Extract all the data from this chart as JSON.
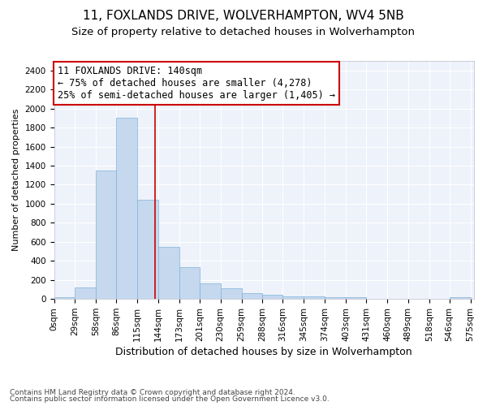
{
  "title1": "11, FOXLANDS DRIVE, WOLVERHAMPTON, WV4 5NB",
  "title2": "Size of property relative to detached houses in Wolverhampton",
  "xlabel": "Distribution of detached houses by size in Wolverhampton",
  "ylabel": "Number of detached properties",
  "footer1": "Contains HM Land Registry data © Crown copyright and database right 2024.",
  "footer2": "Contains public sector information licensed under the Open Government Licence v3.0.",
  "annotation_title": "11 FOXLANDS DRIVE: 140sqm",
  "annotation_line1": "← 75% of detached houses are smaller (4,278)",
  "annotation_line2": "25% of semi-detached houses are larger (1,405) →",
  "bar_color": "#c5d8ee",
  "bar_edge_color": "#7fb3d9",
  "vline_color": "#cc0000",
  "annotation_box_color": "#cc0000",
  "background_color": "#eef2fa",
  "vline_x": 140,
  "bin_edges": [
    0,
    29,
    58,
    86,
    115,
    144,
    173,
    201,
    230,
    259,
    288,
    316,
    345,
    374,
    403,
    431,
    460,
    489,
    518,
    546,
    575
  ],
  "bar_heights": [
    15,
    125,
    1350,
    1900,
    1040,
    545,
    335,
    165,
    110,
    62,
    42,
    30,
    25,
    20,
    15,
    5,
    5,
    3,
    0,
    20
  ],
  "ylim": [
    0,
    2500
  ],
  "yticks": [
    0,
    200,
    400,
    600,
    800,
    1000,
    1200,
    1400,
    1600,
    1800,
    2000,
    2200,
    2400
  ],
  "title1_fontsize": 11,
  "title2_fontsize": 9.5,
  "xlabel_fontsize": 9,
  "ylabel_fontsize": 8,
  "tick_fontsize": 7.5,
  "annotation_fontsize": 8.5,
  "footer_fontsize": 6.5
}
